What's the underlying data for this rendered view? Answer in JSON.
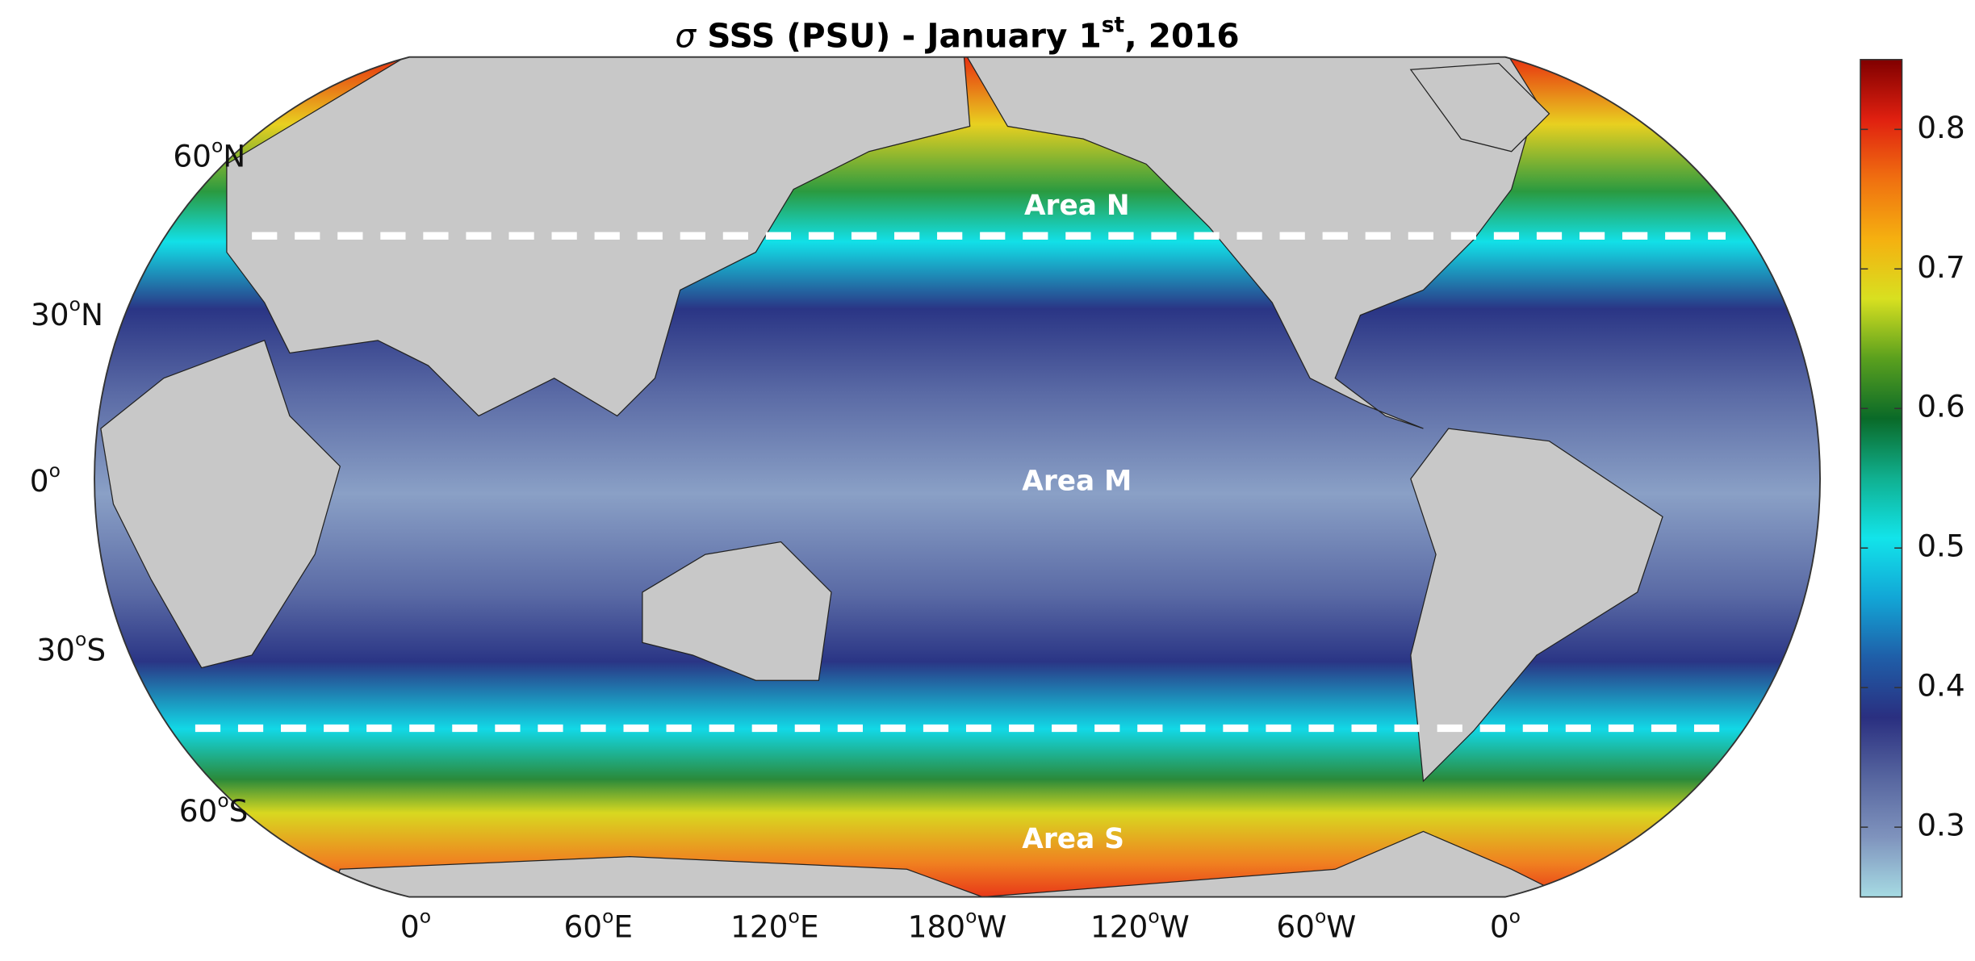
{
  "title": [
    "σ",
    " SSS (PSU) - January 1",
    "st",
    ", 2016"
  ],
  "lat_labels": [
    [
      "60",
      "o",
      "N"
    ],
    [
      "30",
      "o",
      "N"
    ],
    [
      "0",
      "o",
      ""
    ],
    [
      "30",
      "o",
      "S"
    ],
    [
      "60",
      "o",
      "S"
    ]
  ],
  "lon_labels": [
    [
      "0",
      "o",
      ""
    ],
    [
      "60",
      "o",
      "E"
    ],
    [
      "120",
      "o",
      "E"
    ],
    [
      "180",
      "o",
      "W"
    ],
    [
      "120",
      "o",
      "W"
    ],
    [
      "60",
      "o",
      "W"
    ],
    [
      "0",
      "o",
      ""
    ]
  ],
  "areas": [
    "Area N",
    "Area M",
    "Area S"
  ],
  "colorbar": {
    "lim": [
      0.25,
      0.85
    ],
    "ticks": [
      0.3,
      0.4,
      0.5,
      0.6,
      0.7,
      0.8
    ],
    "colormap": [
      "#a6dbe3",
      "#7f93bd",
      "#56659f",
      "#2a2f80",
      "#1f5ea8",
      "#12a6d6",
      "#12e4ea",
      "#10b090",
      "#0a6a28",
      "#5aa01e",
      "#d8e020",
      "#f5b010",
      "#f07010",
      "#e02010",
      "#800000"
    ]
  }
}
